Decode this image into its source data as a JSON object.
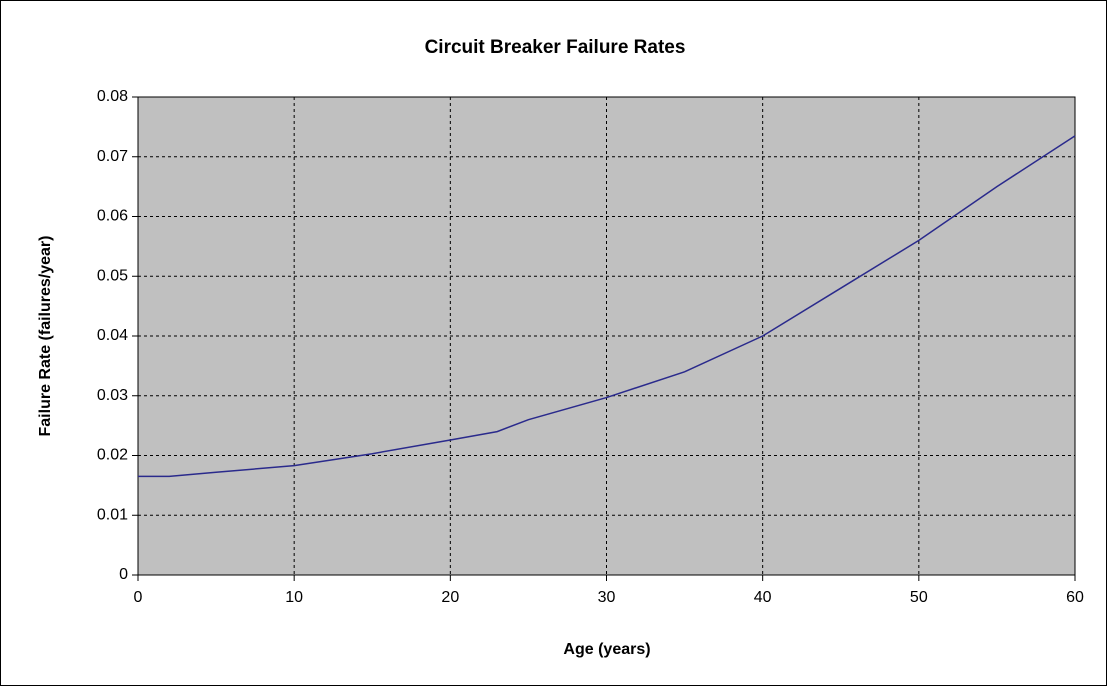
{
  "chart_data": {
    "type": "line",
    "title": "Circuit Breaker Failure Rates",
    "x_label": "Age (years)",
    "y_label": "Failure Rate (failures/year)",
    "x": [
      0,
      2,
      5,
      10,
      15,
      20,
      23,
      25,
      30,
      35,
      40,
      45,
      50,
      55,
      60
    ],
    "series": [
      {
        "name": "Failure Rate",
        "color": "#2a2a8c",
        "values": [
          0.0165,
          0.0165,
          0.0172,
          0.0183,
          0.0203,
          0.0226,
          0.024,
          0.026,
          0.0297,
          0.034,
          0.04,
          0.048,
          0.056,
          0.065,
          0.0735
        ]
      }
    ],
    "xlim": [
      0,
      60
    ],
    "xticks": [
      0,
      10,
      20,
      30,
      40,
      50,
      60
    ],
    "ylim": [
      0,
      0.08
    ],
    "yticks": [
      0,
      0.01,
      0.02,
      0.03,
      0.04,
      0.05,
      0.06,
      0.07,
      0.08
    ],
    "grid": true,
    "plot_background": "#c0c0c0"
  }
}
